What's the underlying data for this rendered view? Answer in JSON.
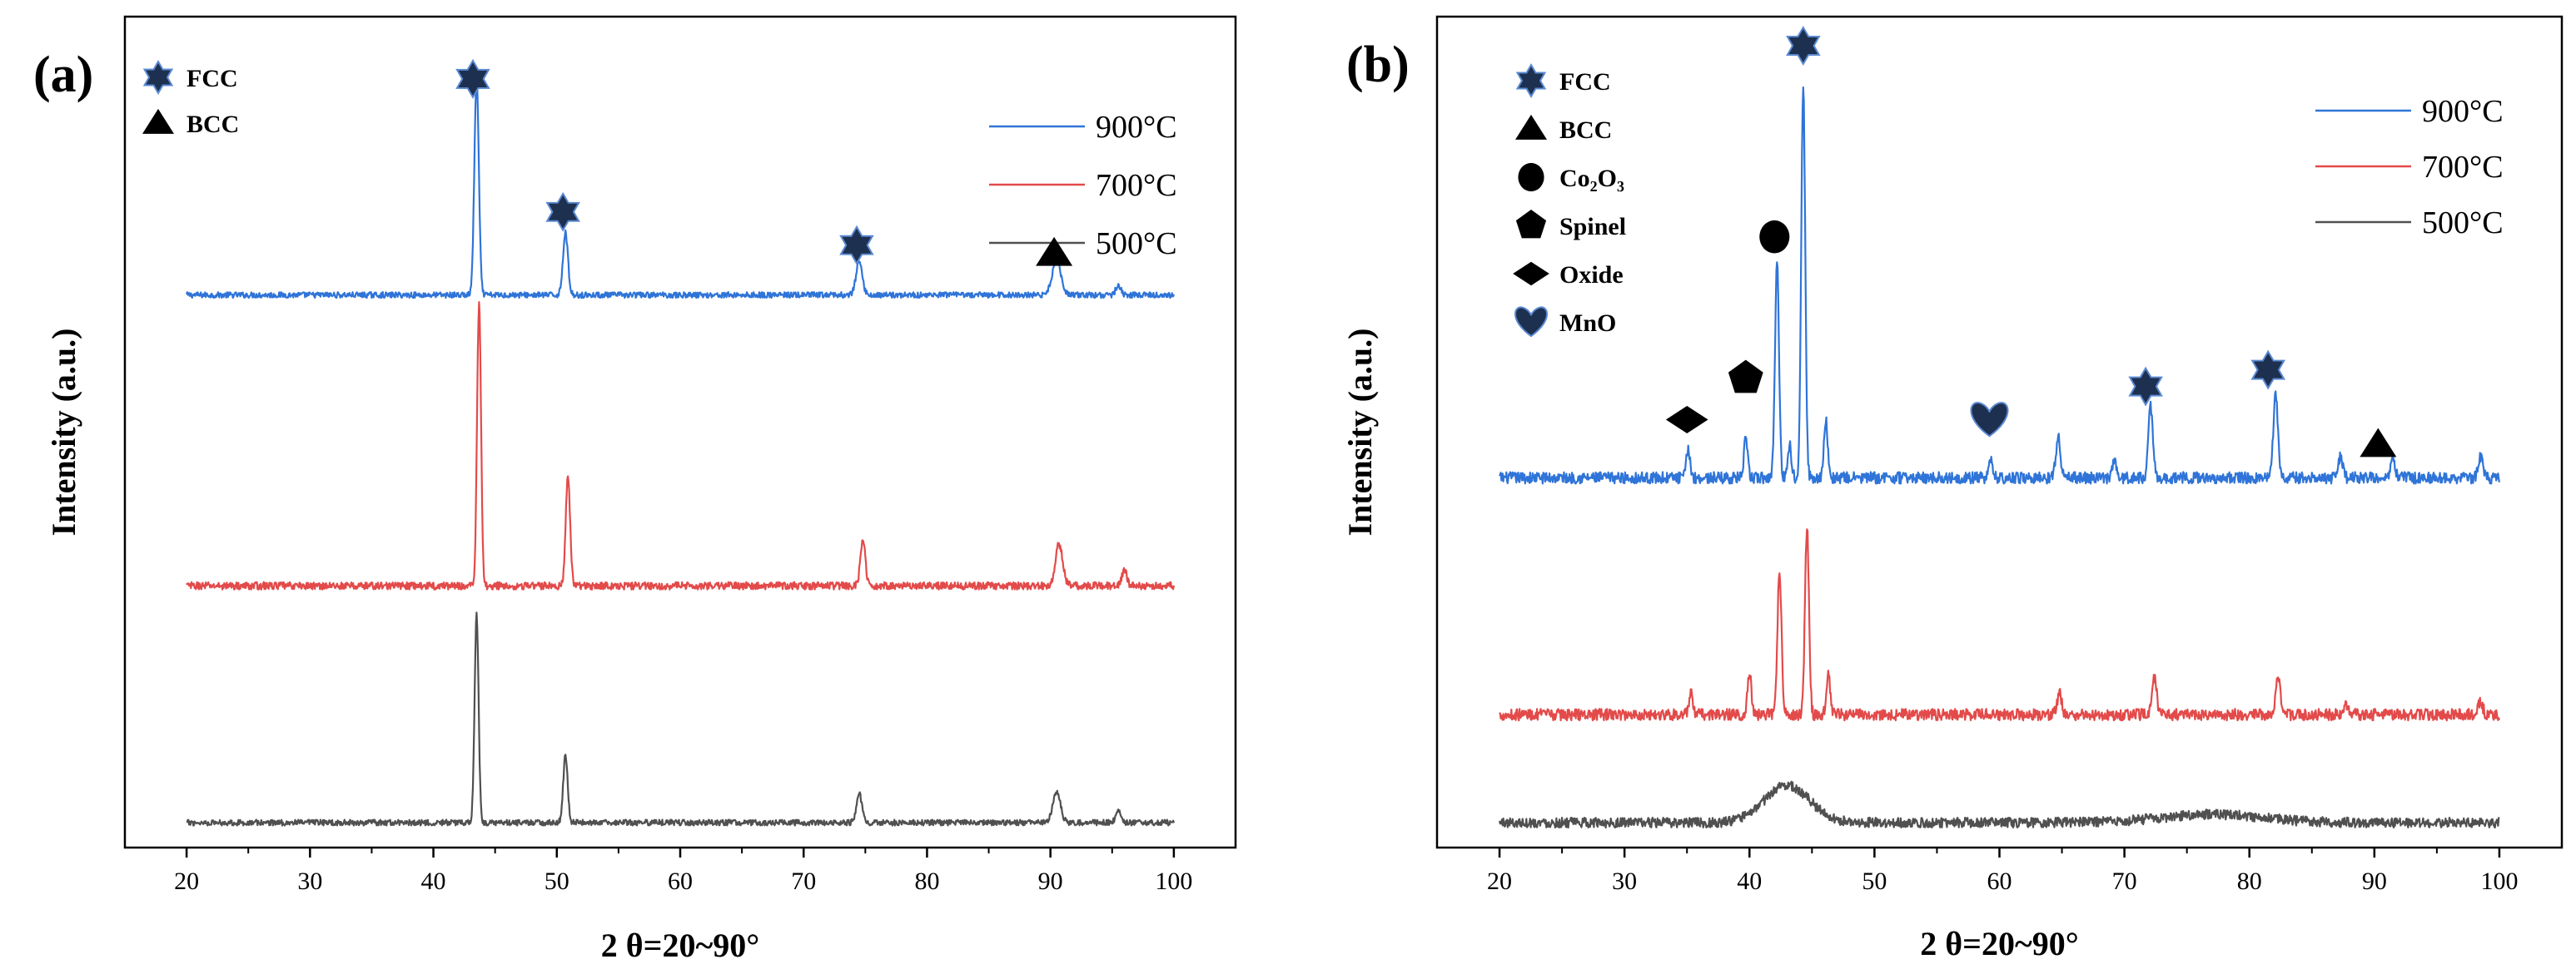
{
  "colors": {
    "c900": "#2f74d8",
    "c700": "#e34a4a",
    "c500": "#505050",
    "axis": "#000000",
    "marker_fill": "#1e3050",
    "marker_stroke": "#5b8ad2"
  },
  "chart_data": [
    {
      "type": "line",
      "panel_label": "(a)",
      "xlabel": "2 θ=20~90°",
      "ylabel": "Intensity (a.u.)",
      "xlim": [
        15,
        105
      ],
      "ylim": [
        0,
        100
      ],
      "xticks": [
        20,
        30,
        40,
        50,
        60,
        70,
        80,
        90,
        100
      ],
      "legend_position": "top-right",
      "series": [
        {
          "name": "900°C",
          "color_key": "c900",
          "baseline": 66.5,
          "noise": 0.35,
          "peaks": [
            [
              43.5,
              26,
              0.18
            ],
            [
              50.7,
              7.5,
              0.2
            ],
            [
              74.5,
              4,
              0.25
            ],
            [
              90.5,
              4.2,
              0.35
            ],
            [
              95.5,
              1.2,
              0.2
            ]
          ]
        },
        {
          "name": "700°C",
          "color_key": "c700",
          "baseline": 31.5,
          "noise": 0.45,
          "peaks": [
            [
              43.7,
              34,
              0.16
            ],
            [
              50.9,
              13,
              0.18
            ],
            [
              74.8,
              5.5,
              0.2
            ],
            [
              90.7,
              5,
              0.3
            ],
            [
              96.0,
              1.8,
              0.2
            ]
          ]
        },
        {
          "name": "500°C",
          "color_key": "c500",
          "baseline": 3.0,
          "noise": 0.35,
          "peaks": [
            [
              43.5,
              25,
              0.16
            ],
            [
              50.7,
              8,
              0.18
            ],
            [
              74.5,
              3.5,
              0.22
            ],
            [
              90.5,
              3.8,
              0.3
            ],
            [
              95.5,
              1.5,
              0.2
            ]
          ]
        }
      ],
      "phase_legend": [
        {
          "symbol": "star",
          "label": "FCC"
        },
        {
          "symbol": "triangle",
          "label": "BCC"
        }
      ],
      "annotations": [
        {
          "symbol": "star",
          "x": 43.2,
          "y": 92.5
        },
        {
          "symbol": "star",
          "x": 50.5,
          "y": 76.5
        },
        {
          "symbol": "star",
          "x": 74.3,
          "y": 72.5
        },
        {
          "symbol": "triangle",
          "x": 90.3,
          "y": 71.5
        }
      ]
    },
    {
      "type": "line",
      "panel_label": "(b)",
      "xlabel": "2 θ=20~90°",
      "ylabel": "Intensity (a.u.)",
      "xlim": [
        15,
        105
      ],
      "ylim": [
        0,
        100
      ],
      "xticks": [
        20,
        30,
        40,
        50,
        60,
        70,
        80,
        90,
        100
      ],
      "legend_position": "top-right",
      "series": [
        {
          "name": "900°C",
          "color_key": "c900",
          "baseline": 44.5,
          "noise": 0.7,
          "peaks": [
            [
              35.1,
              3.5,
              0.15
            ],
            [
              39.7,
              4.5,
              0.15
            ],
            [
              42.2,
              26,
              0.16
            ],
            [
              43.2,
              4,
              0.15
            ],
            [
              44.3,
              47,
              0.16
            ],
            [
              46.1,
              7,
              0.15
            ],
            [
              59.3,
              2,
              0.15
            ],
            [
              64.7,
              5,
              0.18
            ],
            [
              69.2,
              2,
              0.15
            ],
            [
              72.1,
              8.5,
              0.18
            ],
            [
              82.1,
              10,
              0.18
            ],
            [
              87.3,
              2.5,
              0.18
            ],
            [
              91.5,
              2,
              0.18
            ],
            [
              98.5,
              2.5,
              0.18
            ]
          ]
        },
        {
          "name": "700°C",
          "color_key": "c700",
          "baseline": 16.0,
          "noise": 0.7,
          "peaks": [
            [
              35.3,
              2.5,
              0.15
            ],
            [
              40.0,
              5,
              0.15
            ],
            [
              42.4,
              17.5,
              0.16
            ],
            [
              44.6,
              22.5,
              0.16
            ],
            [
              46.3,
              5,
              0.15
            ],
            [
              64.8,
              2.5,
              0.18
            ],
            [
              72.4,
              4.5,
              0.18
            ],
            [
              82.3,
              4.5,
              0.18
            ],
            [
              87.7,
              1.5,
              0.18
            ],
            [
              98.5,
              1.5,
              0.18
            ]
          ]
        },
        {
          "name": "500°C",
          "color_key": "c500",
          "baseline": 3.0,
          "noise": 0.6,
          "peaks": [
            [
              43.0,
              4.5,
              1.8
            ],
            [
              77.0,
              1.0,
              4.0
            ]
          ]
        }
      ],
      "phase_legend": [
        {
          "symbol": "star",
          "label": "FCC"
        },
        {
          "symbol": "triangle",
          "label": "BCC"
        },
        {
          "symbol": "circle",
          "label": "Co₂O₃"
        },
        {
          "symbol": "pentagon",
          "label": "Spinel"
        },
        {
          "symbol": "diamond",
          "label": "Oxide"
        },
        {
          "symbol": "heart",
          "label": "MnO"
        }
      ],
      "annotations": [
        {
          "symbol": "star",
          "x": 44.3,
          "y": 96.5
        },
        {
          "symbol": "circle",
          "x": 42.0,
          "y": 73.5
        },
        {
          "symbol": "pentagon",
          "x": 39.7,
          "y": 56.5
        },
        {
          "symbol": "diamond",
          "x": 35.0,
          "y": 51.5
        },
        {
          "symbol": "heart",
          "x": 59.2,
          "y": 51.5
        },
        {
          "symbol": "star",
          "x": 71.7,
          "y": 55.5
        },
        {
          "symbol": "star",
          "x": 81.5,
          "y": 57.5
        },
        {
          "symbol": "triangle",
          "x": 90.3,
          "y": 48.5
        }
      ]
    }
  ]
}
